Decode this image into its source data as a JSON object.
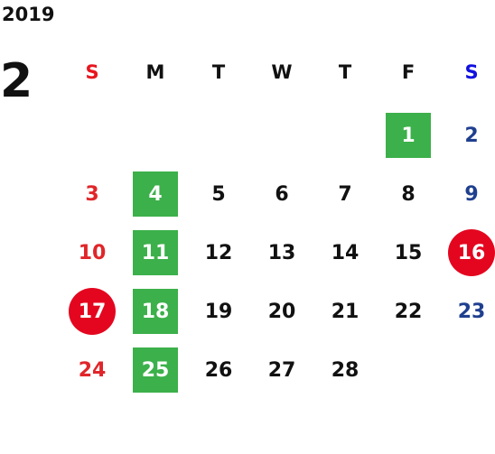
{
  "header": {
    "year": "2019",
    "month": "2"
  },
  "weekdays": [
    "S",
    "M",
    "T",
    "W",
    "T",
    "F",
    "S"
  ],
  "weeks": [
    [
      null,
      null,
      null,
      null,
      null,
      {
        "day": "1",
        "style": "green"
      },
      {
        "day": "2"
      }
    ],
    [
      {
        "day": "3"
      },
      {
        "day": "4",
        "style": "green"
      },
      {
        "day": "5"
      },
      {
        "day": "6"
      },
      {
        "day": "7"
      },
      {
        "day": "8"
      },
      {
        "day": "9"
      }
    ],
    [
      {
        "day": "10"
      },
      {
        "day": "11",
        "style": "green"
      },
      {
        "day": "12"
      },
      {
        "day": "13"
      },
      {
        "day": "14"
      },
      {
        "day": "15"
      },
      {
        "day": "16",
        "style": "red"
      }
    ],
    [
      {
        "day": "17",
        "style": "red"
      },
      {
        "day": "18",
        "style": "green"
      },
      {
        "day": "19"
      },
      {
        "day": "20"
      },
      {
        "day": "21"
      },
      {
        "day": "22"
      },
      {
        "day": "23"
      }
    ],
    [
      {
        "day": "24"
      },
      {
        "day": "25",
        "style": "green"
      },
      {
        "day": "26"
      },
      {
        "day": "27"
      },
      {
        "day": "28"
      },
      null,
      null
    ]
  ]
}
